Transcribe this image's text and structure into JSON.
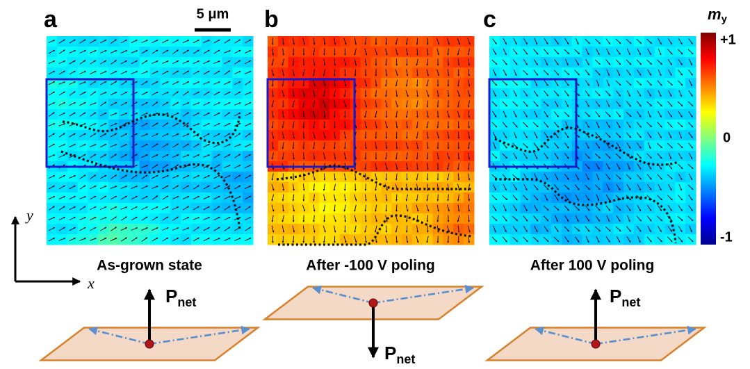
{
  "panels": [
    {
      "letter": "a",
      "caption": "As-grown state"
    },
    {
      "letter": "b",
      "caption": "After -100 V poling"
    },
    {
      "letter": "c",
      "caption": "After 100 V poling"
    }
  ],
  "scale_bar": "5 μm",
  "colorbar": {
    "symbol": "m",
    "subscript": "y",
    "labels": [
      "+1",
      "0",
      "-1"
    ]
  },
  "axes": {
    "x": "x",
    "y": "y"
  },
  "polarization": {
    "symbol": "P",
    "subscript": "net"
  }
}
